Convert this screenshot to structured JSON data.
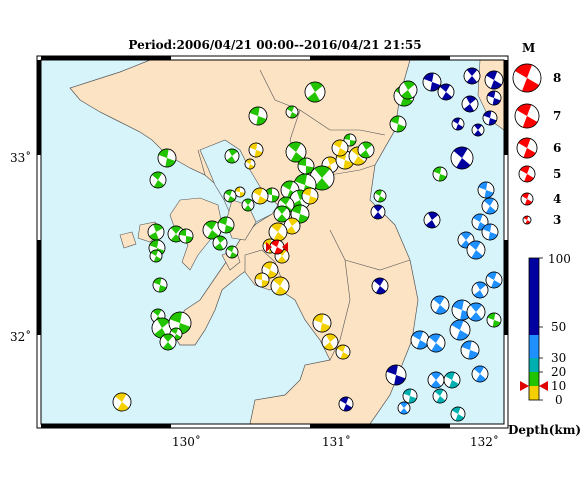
{
  "title": "Period:2006/04/21 00:00--2016/04/21 21:55",
  "axes": {
    "lat_labels": [
      "33˚",
      "32˚"
    ],
    "lon_labels": [
      "130˚",
      "131˚",
      "132˚"
    ]
  },
  "magnitude_legend": {
    "title": "M",
    "items": [
      "8",
      "7",
      "6",
      "5",
      "4",
      "3"
    ]
  },
  "depth_legend": {
    "title": "Depth(km)",
    "ticks": [
      "100",
      "50",
      "30",
      "20",
      "10",
      "0"
    ],
    "colors": {
      "0-10": "#f5d000",
      "10-20": "#22c400",
      "20-30": "#00b0b0",
      "30-50": "#1e90ff",
      "50-100": "#0000a0"
    }
  },
  "colors": {
    "sea": "#d8f4fb",
    "land": "#fbe3c4",
    "border": "#000000",
    "target_event": "#ff0000"
  }
}
